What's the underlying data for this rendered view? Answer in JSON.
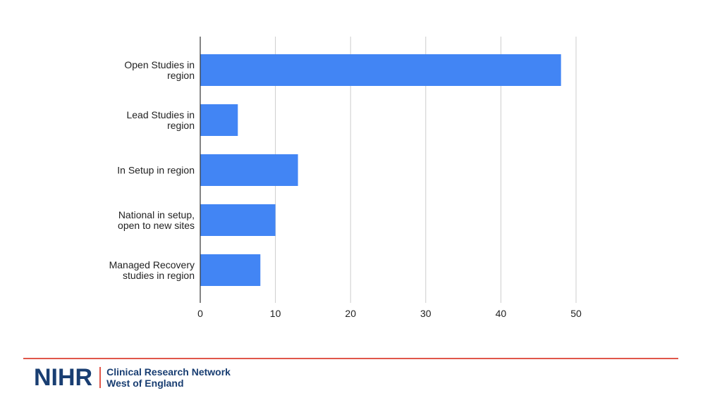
{
  "chart_data": {
    "type": "bar",
    "orientation": "horizontal",
    "categories": [
      [
        "Open Studies in",
        "region"
      ],
      [
        "Lead Studies in",
        "region"
      ],
      [
        "In Setup in region"
      ],
      [
        "National in setup,",
        "open to new sites"
      ],
      [
        "Managed Recovery",
        "studies in region"
      ]
    ],
    "values": [
      48,
      5,
      13,
      10,
      8
    ],
    "xlim": [
      0,
      50
    ],
    "xticks": [
      0,
      10,
      20,
      30,
      40,
      50
    ],
    "grid": true,
    "bar_color": "#4285f4"
  },
  "footer": {
    "logo_word": "NIHR",
    "line1": "Clinical Research Network",
    "line2": "West of England",
    "accent_color": "#e0574a",
    "brand_color": "#193e72"
  }
}
